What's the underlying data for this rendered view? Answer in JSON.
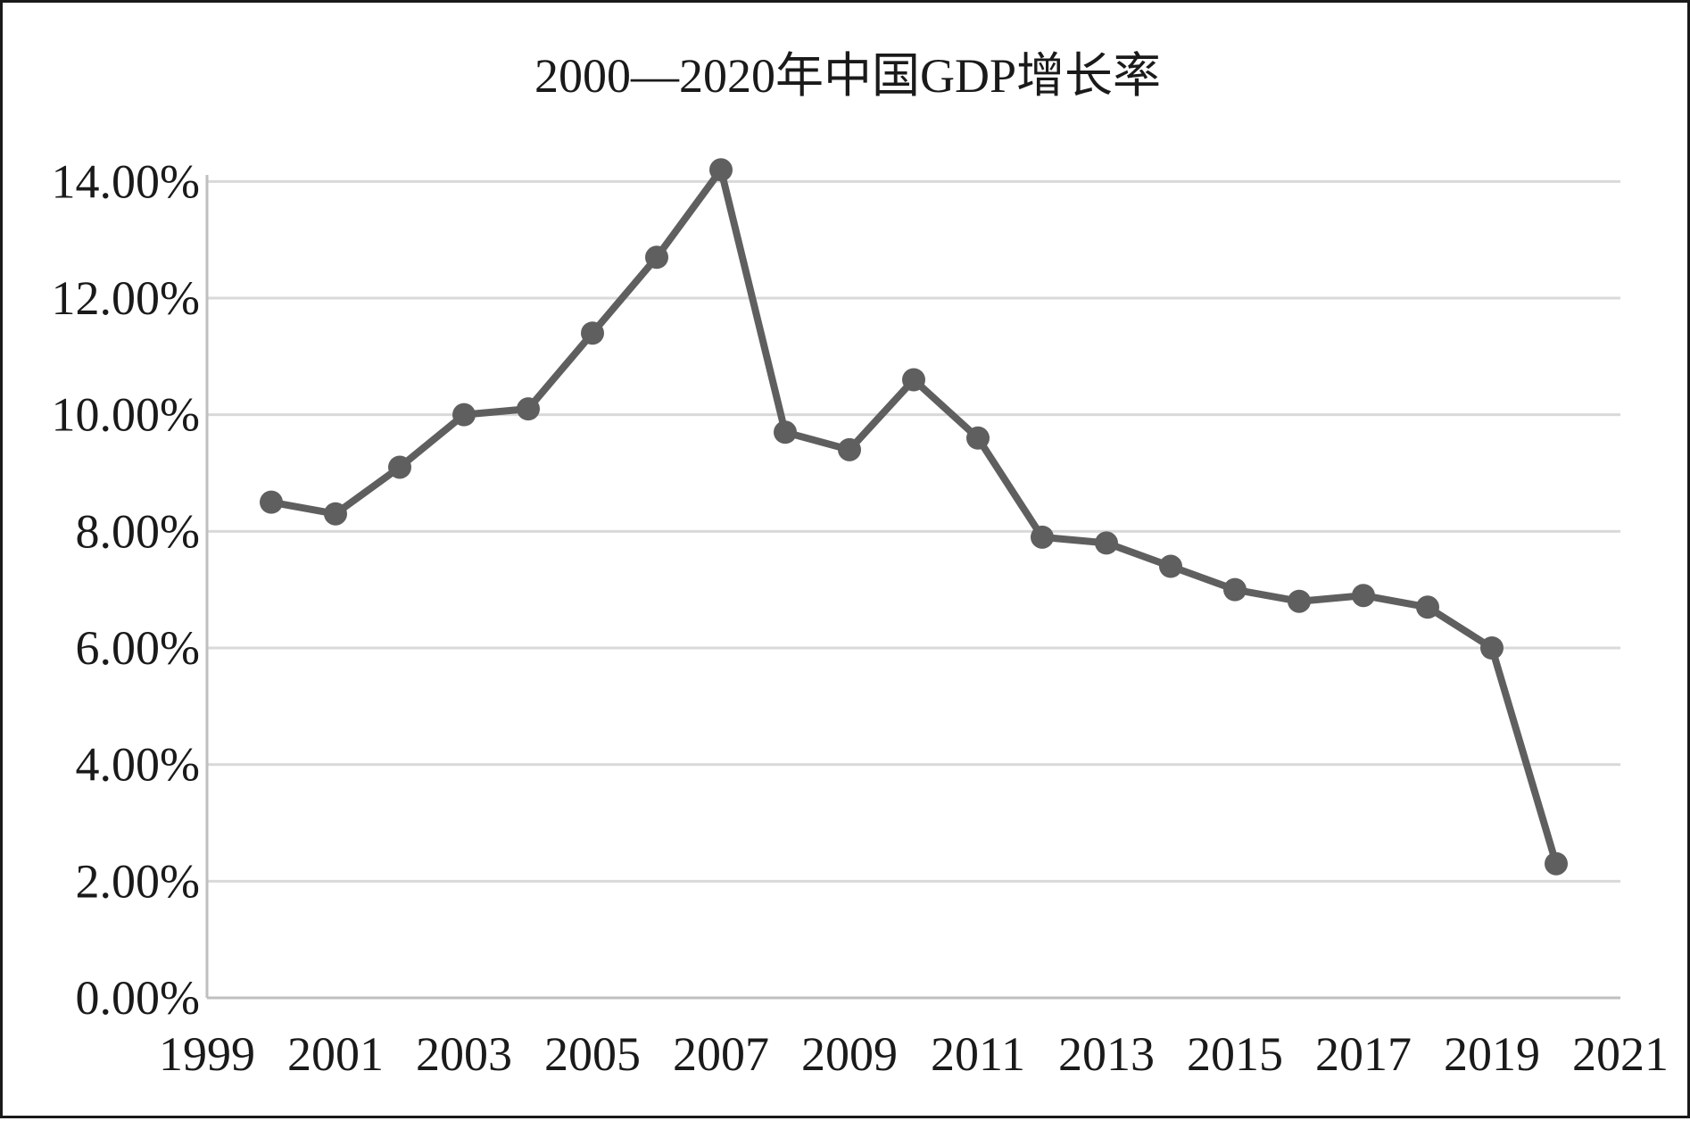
{
  "chart_data": {
    "type": "line",
    "title": "2000—2020年中国GDP增长率",
    "xlabel": "",
    "ylabel": "",
    "xlim": [
      1999,
      2021
    ],
    "ylim": [
      0,
      15
    ],
    "x_ticks": [
      "1999",
      "2001",
      "2003",
      "2005",
      "2007",
      "2009",
      "2011",
      "2013",
      "2015",
      "2017",
      "2019",
      "2021"
    ],
    "y_ticks": [
      "0.00%",
      "2.00%",
      "4.00%",
      "6.00%",
      "8.00%",
      "10.00%",
      "12.00%",
      "14.00%"
    ],
    "grid": "horizontal",
    "legend": "none",
    "series": [
      {
        "x": [
          2000,
          2001,
          2002,
          2003,
          2004,
          2005,
          2006,
          2007,
          2008,
          2009,
          2010,
          2011,
          2012,
          2013,
          2014,
          2015,
          2016,
          2017,
          2018,
          2019,
          2020
        ],
        "values": [
          8.5,
          8.3,
          9.1,
          10.0,
          10.1,
          11.4,
          12.7,
          14.2,
          9.7,
          9.4,
          10.6,
          9.6,
          7.9,
          7.8,
          7.4,
          7.0,
          6.8,
          6.9,
          6.7,
          6.0,
          2.3
        ]
      }
    ],
    "colors": {
      "line": "#5f5f5f",
      "grid": "#d9d9d9",
      "axis": "#bfbfbf",
      "text": "#1a1a1a"
    }
  }
}
